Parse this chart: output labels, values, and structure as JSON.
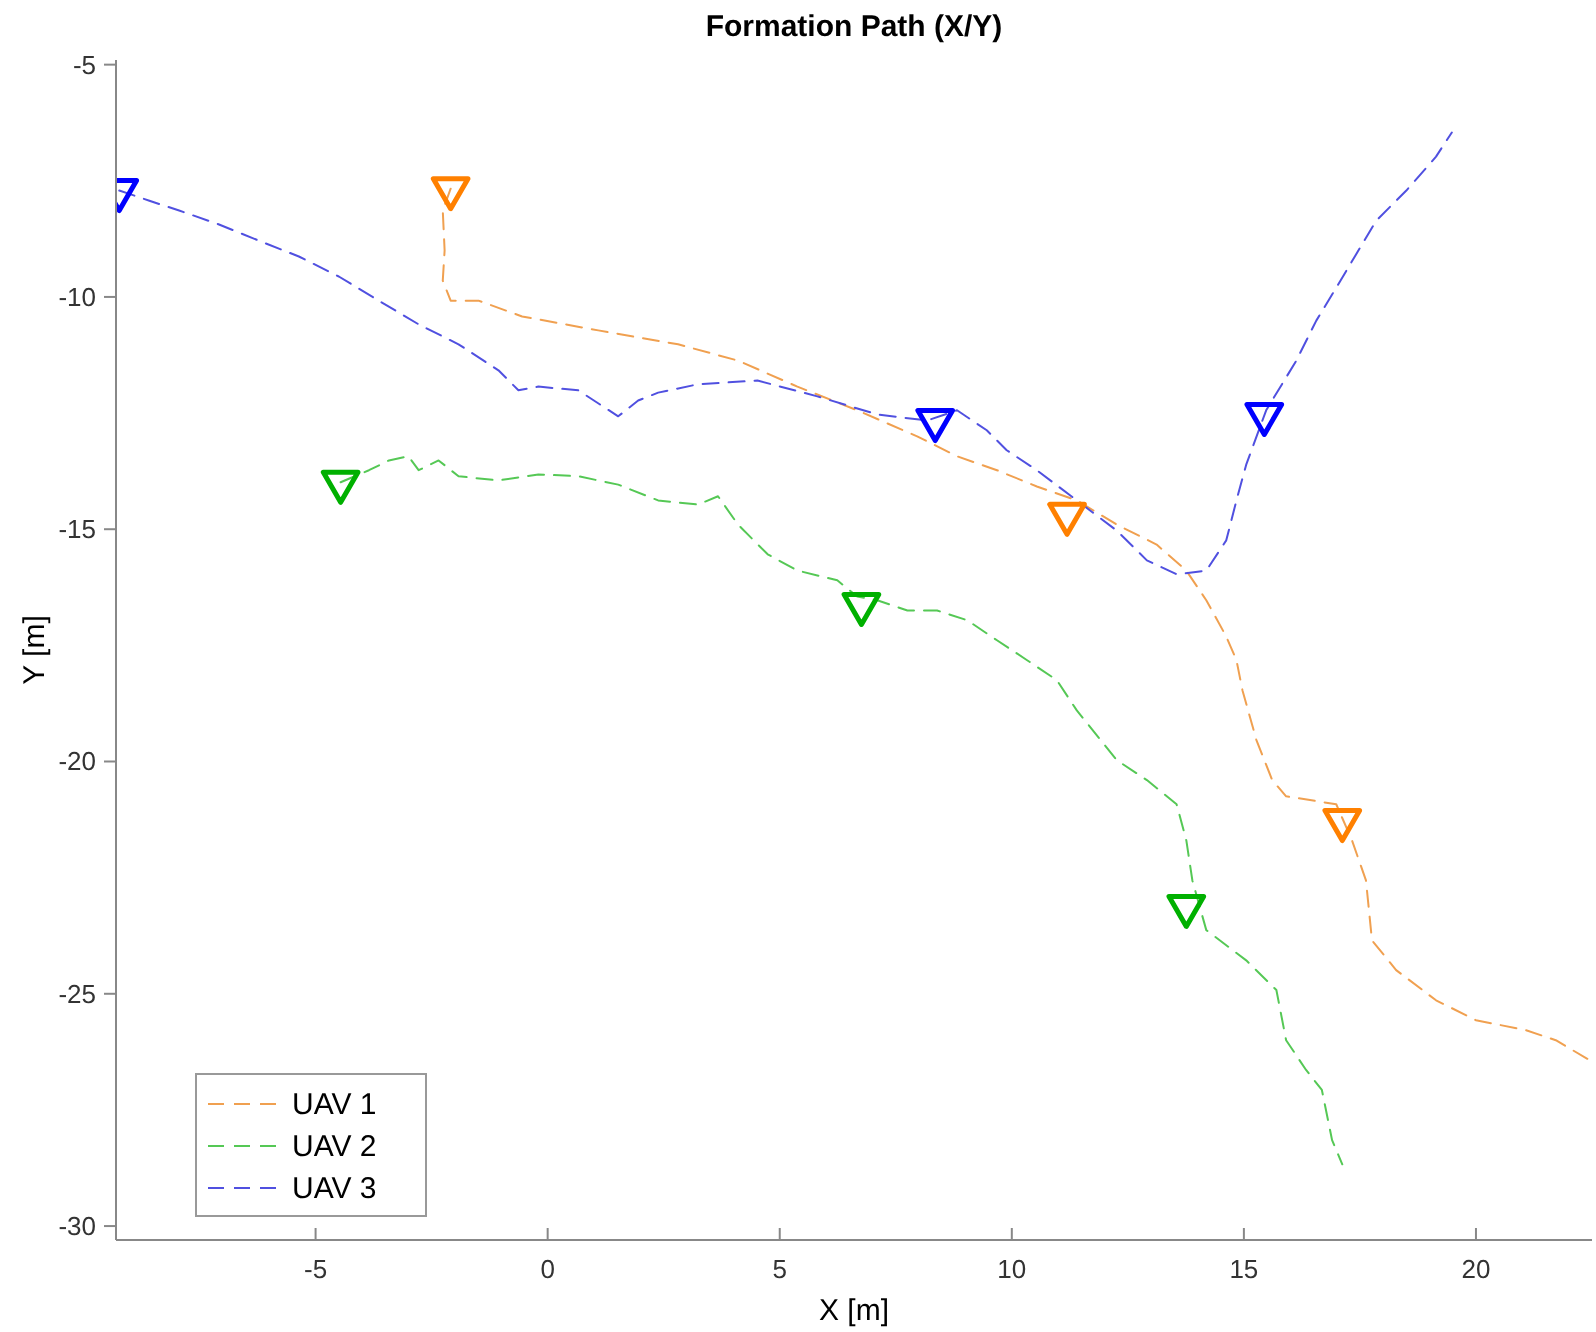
{
  "chart_data": {
    "type": "line",
    "title": "Formation Path (X/Y)",
    "xlabel": "X [m]",
    "ylabel": "Y [m]",
    "xlim": [
      -9.3,
      22.5
    ],
    "ylim": [
      -30.3,
      -4.9
    ],
    "xticks": [
      -5,
      0,
      5,
      10,
      15,
      20
    ],
    "yticks": [
      -30,
      -25,
      -20,
      -15,
      -10,
      -5
    ],
    "grid": false,
    "legend": "bottom left",
    "line_style": "dashed",
    "series": [
      {
        "name": "UAV 1",
        "color": "#f0a050",
        "x": [
          -2.09,
          -2.26,
          -2.22,
          -2.26,
          -2.09,
          -1.49,
          -0.55,
          1.09,
          2.81,
          4.1,
          5.38,
          6.67,
          7.96,
          8.82,
          9.68,
          10.54,
          11.4,
          12.26,
          13.12,
          13.76,
          14.19,
          14.62,
          14.84,
          14.97,
          15.27,
          15.61,
          15.91,
          16.99,
          17.33,
          17.63,
          17.76,
          18.28,
          19.14,
          20,
          21.07,
          21.72,
          22.4
        ],
        "values": [
          -7.67,
          -8.14,
          -9,
          -9.65,
          -10.08,
          -10.08,
          -10.42,
          -10.72,
          -11.02,
          -11.37,
          -11.93,
          -12.44,
          -13,
          -13.43,
          -13.73,
          -14.08,
          -14.38,
          -14.9,
          -15.33,
          -15.89,
          -16.53,
          -17.31,
          -17.82,
          -18.47,
          -19.54,
          -20.4,
          -20.75,
          -20.92,
          -21.7,
          -22.56,
          -23.85,
          -24.49,
          -25.14,
          -25.57,
          -25.78,
          -26,
          -26.4
        ]
      },
      {
        "name": "UAV 2",
        "color": "#55c855",
        "x": [
          -4.46,
          -3.85,
          -3.42,
          -3,
          -2.78,
          -2.35,
          -1.92,
          -1.06,
          -0.2,
          0.66,
          1.52,
          2.38,
          3.24,
          3.67,
          4.1,
          4.74,
          5.38,
          6.24,
          6.67,
          7.1,
          7.75,
          8.39,
          9.04,
          9.68,
          10.33,
          10.97,
          11.4,
          12.26,
          12.91,
          13.55,
          13.76,
          13.89,
          14.19,
          15.05,
          15.7,
          15.91,
          16.34,
          16.68,
          16.9,
          17.12
        ],
        "values": [
          -13.99,
          -13.73,
          -13.52,
          -13.43,
          -13.73,
          -13.52,
          -13.86,
          -13.95,
          -13.82,
          -13.86,
          -14.04,
          -14.38,
          -14.47,
          -14.29,
          -14.9,
          -15.54,
          -15.89,
          -16.1,
          -16.45,
          -16.53,
          -16.75,
          -16.75,
          -16.96,
          -17.39,
          -17.82,
          -18.25,
          -18.9,
          -19.97,
          -20.4,
          -20.92,
          -21.7,
          -22.56,
          -23.63,
          -24.28,
          -24.92,
          -26,
          -26.64,
          -27.07,
          -28.15,
          -28.67
        ]
      },
      {
        "name": "UAV 3",
        "color": "#5050e0",
        "x": [
          -9.23,
          -8.58,
          -7.94,
          -7.08,
          -6.22,
          -5.36,
          -4.5,
          -3.64,
          -2.78,
          -1.92,
          -1.06,
          -0.63,
          -0.2,
          0.66,
          1.52,
          1.95,
          2.38,
          3.24,
          4.52,
          5.81,
          7.1,
          8.18,
          8.82,
          9.46,
          9.89,
          10.54,
          11.4,
          12.26,
          12.91,
          13.55,
          14.19,
          14.62,
          14.84,
          15.05,
          15.48,
          16.13,
          16.56,
          17.08,
          17.85,
          18.5,
          19.14,
          19.48
        ],
        "values": [
          -7.71,
          -7.93,
          -8.14,
          -8.44,
          -8.79,
          -9.13,
          -9.56,
          -10.08,
          -10.59,
          -11.02,
          -11.58,
          -12.01,
          -11.93,
          -12.01,
          -12.57,
          -12.23,
          -12.06,
          -11.88,
          -11.8,
          -12.14,
          -12.53,
          -12.66,
          -12.44,
          -12.87,
          -13.3,
          -13.73,
          -14.38,
          -15.03,
          -15.67,
          -15.97,
          -15.89,
          -15.24,
          -14.38,
          -13.61,
          -12.44,
          -11.37,
          -10.51,
          -9.65,
          -8.36,
          -7.71,
          -6.98,
          -6.46
        ]
      },
      {
        "type": "scatter",
        "marker": "triangle",
        "color": "#ff8000",
        "x": [
          -2.09,
          11.19,
          17.12
        ],
        "values": [
          -7.67,
          -14.68,
          -21.27
        ]
      },
      {
        "type": "scatter",
        "marker": "triangle",
        "color": "#00b000",
        "x": [
          -4.46,
          6.76,
          13.76
        ],
        "values": [
          -13.99,
          -16.62,
          -23.12
        ]
      },
      {
        "type": "scatter",
        "marker": "triangle",
        "color": "#0000ff",
        "x": [
          -9.23,
          8.35,
          15.44
        ],
        "values": [
          -7.71,
          -12.66,
          -12.53
        ]
      }
    ]
  }
}
